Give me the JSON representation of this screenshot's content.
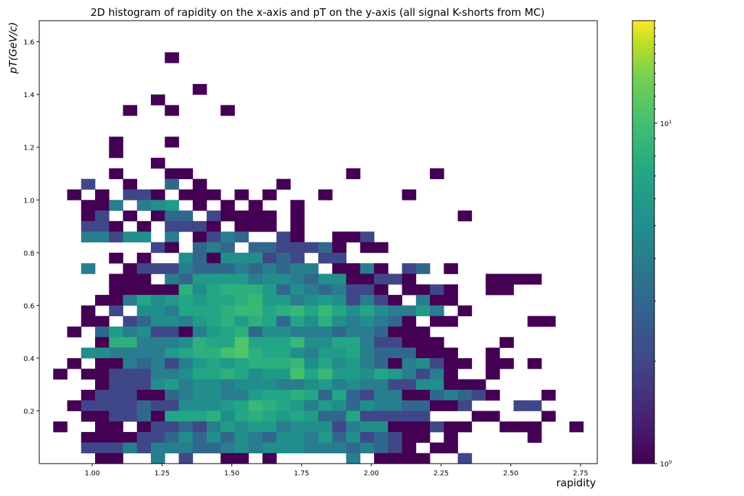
{
  "chart_data": {
    "type": "heatmap",
    "title": "2D histogram of rapidity on the x-axis and pT on the y-axis (all signal K-shorts from MC)",
    "xlabel": "rapidity",
    "ylabel": "pT(GeV/c)",
    "xlim": [
      0.81,
      2.81
    ],
    "ylim": [
      0.0,
      1.68
    ],
    "x_bin_edges_start": 0.81,
    "x_bin_width": 0.05,
    "y_bin_edges_start": 0.0,
    "y_bin_width": 0.04,
    "x_ticks": [
      "1.00",
      "1.25",
      "1.50",
      "1.75",
      "2.00",
      "2.25",
      "2.50",
      "2.75"
    ],
    "x_tick_values": [
      1.0,
      1.25,
      1.5,
      1.75,
      2.0,
      2.25,
      2.5,
      2.75
    ],
    "y_ticks": [
      "0.2",
      "0.4",
      "0.6",
      "0.8",
      "1.0",
      "1.2",
      "1.4",
      "1.6"
    ],
    "y_tick_values": [
      0.2,
      0.4,
      0.6,
      0.8,
      1.0,
      1.2,
      1.4,
      1.6
    ],
    "colorbar": {
      "scale": "log",
      "min": 1,
      "max": 20,
      "tick_labels": [
        {
          "base": "10",
          "exp": "0",
          "value": 1
        },
        {
          "base": "10",
          "exp": "1",
          "value": 10
        }
      ],
      "colormap": "viridis"
    },
    "counts_rows_top_to_bottom": [
      ".........A..........................",
      "............................................",
      "..........................................",
      "...........A................................",
      "........A.................................",
      "......A..A...A..............................",
      "........................................",
      "........................................",
      ".....A...A..............................",
      ".....A..................................",
      "........A...............................",
      ".....A...AA...........A.....A...........",
      "...B..A..C.A.....A...........",
      "..A.A.BBA.AAA.A.A...A.....A..........",
      "...AAD.DEF.A.A.A..A.....................",
      "...AB.A.ACC.BAAAA.A...........A.........",
      "...BBA.A.BBBA.AAA.A.....................",
      "...DDBEE.D.ABDC..BA..AAB................",
      "........BA.CDC.CCBBBCA.AA..........",
      ".....A.A..ECAEEEBCB.BB.....",
      "...D..ABBBDCCCDCDCDD.AADA.BC.A....",
      ".....AAA.DCFFFFDEEDCEEAABBA.....AAAA....",
      ".....AAAAAHEGHHHFCEDCDBBA.AABA..AA......",
      "....AADGEFGFGGHIFFDEFEBDBA.DAA..........",
      "...A.B.EEDGGGHIIGHIGIGEGEDDFD.A.........",
      "...AA.BCEEDFGHFHGCGEHEDEDCA.AA.....AA...",
      "..A.CFDEBBADFGHCEEDDDCDDCAAA...........",
      "....AHHDDDEHGGKGGGIEEGGDBBAAA....A.....",
      "...EEDDDDFGHHJKHGGEDFFGDCCCAAA..A......",
      "..A.AADCDBDFGFGHHHIEGEFDCADEBAA.AA.A....",
      ".A.AABBBDDEGGHGEFFJGIFFEGFDBDA..A........",
      "....ABBBEFDEEDEEEDDEFDEDDBBEEAAA..........",
      "...ABBBAACDEEDDFGGHGCGCBDDAACDCBA...A.....",
      "..ABBBBCBBEEEFGIHGFDFECEDDCCAAB...BB.....",
      "...AABBCAGGGHEGHGFGFCCGBBBBB...AA...A....",
      ".A..AA.ABBCBDFEFFDEEEBDEEAAABAA..AAA..A.",
      "...AAAABBCECECEDCEEDFCEBCBAA.A.....A....A",
      "...BBBDBDDDCCDEDEEEDDDCDCBA.AA..........",
      "....AA..D.B..AA.A.....D.AAAA..B.........."
    ]
  }
}
